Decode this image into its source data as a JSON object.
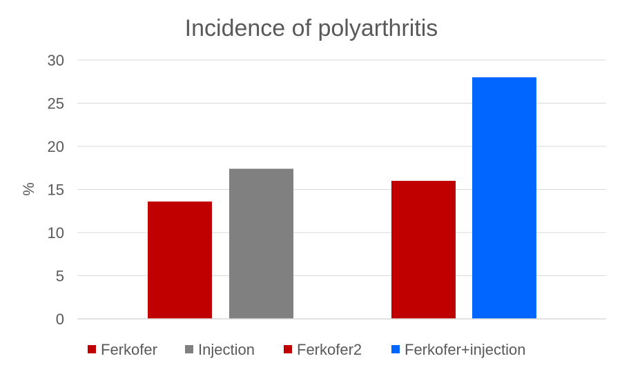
{
  "chart_data": {
    "type": "bar",
    "title": "Incidence of polyarthritis",
    "xlabel": "",
    "ylabel": "%",
    "ylim": [
      0,
      30
    ],
    "yticks": [
      0,
      5,
      10,
      15,
      20,
      25,
      30
    ],
    "grid": true,
    "legend_position": "bottom",
    "bars": [
      {
        "name": "Ferkofer",
        "value": 13.6,
        "color": "#C00000"
      },
      {
        "name": "Injection",
        "value": 17.4,
        "color": "#808080"
      },
      {
        "name": "Ferkofer2",
        "value": 16.0,
        "color": "#C00000"
      },
      {
        "name": "Ferkofer+injection",
        "value": 28.0,
        "color": "#0066FF"
      }
    ]
  }
}
